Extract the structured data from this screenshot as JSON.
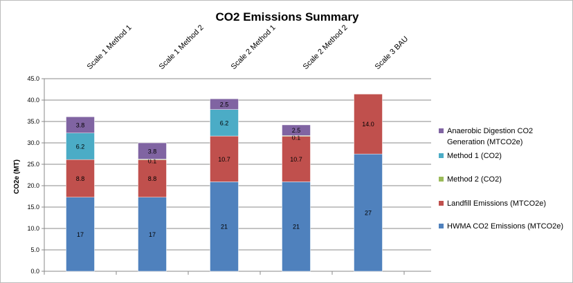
{
  "chart_data": {
    "type": "bar",
    "stacked": true,
    "title": "CO2 Emissions Summary",
    "xlabel": "",
    "ylabel": "CO2e (MT)",
    "ylim": [
      0,
      45
    ],
    "yticks": [
      "0.0",
      "5.0",
      "10.0",
      "15.0",
      "20.0",
      "25.0",
      "30.0",
      "35.0",
      "40.0",
      "45.0"
    ],
    "grid": true,
    "legend_position": "right",
    "categories": [
      "Scale 1 Method 1",
      "Scale 1 Method 2",
      "Scale 2 Method 1",
      "Scale 2 Method 2",
      "Scale 3 BAU"
    ],
    "series": [
      {
        "name": "HWMA CO2 Emissions (MTCO2e)",
        "color": "#4f81bd",
        "values": [
          17.3,
          17.3,
          20.9,
          20.9,
          27.4
        ],
        "labels": [
          "17",
          "17",
          "21",
          "21",
          "27"
        ]
      },
      {
        "name": "Landfill Emissions (MTCO2e)",
        "color": "#c0504d",
        "values": [
          8.8,
          8.8,
          10.7,
          10.7,
          14.0
        ],
        "labels": [
          "8.8",
          "8.8",
          "10.7",
          "10.7",
          "14.0"
        ]
      },
      {
        "name": "Method 2 (CO2)",
        "color": "#9bbb59",
        "values": [
          0,
          0.1,
          0,
          0.1,
          0
        ],
        "labels": [
          "",
          "0.1",
          "",
          "0.1",
          ""
        ]
      },
      {
        "name": "Method 1 (CO2)",
        "color": "#4bacc6",
        "values": [
          6.2,
          0,
          6.2,
          0,
          0
        ],
        "labels": [
          "6.2",
          "",
          "6.2",
          "",
          ""
        ]
      },
      {
        "name": "Anaerobic Digestion CO2 Generation (MTCO2e)",
        "color": "#8064a2",
        "values": [
          3.8,
          3.8,
          2.5,
          2.5,
          0
        ],
        "labels": [
          "3.8",
          "3.8",
          "2.5",
          "2.5",
          ""
        ]
      }
    ]
  }
}
